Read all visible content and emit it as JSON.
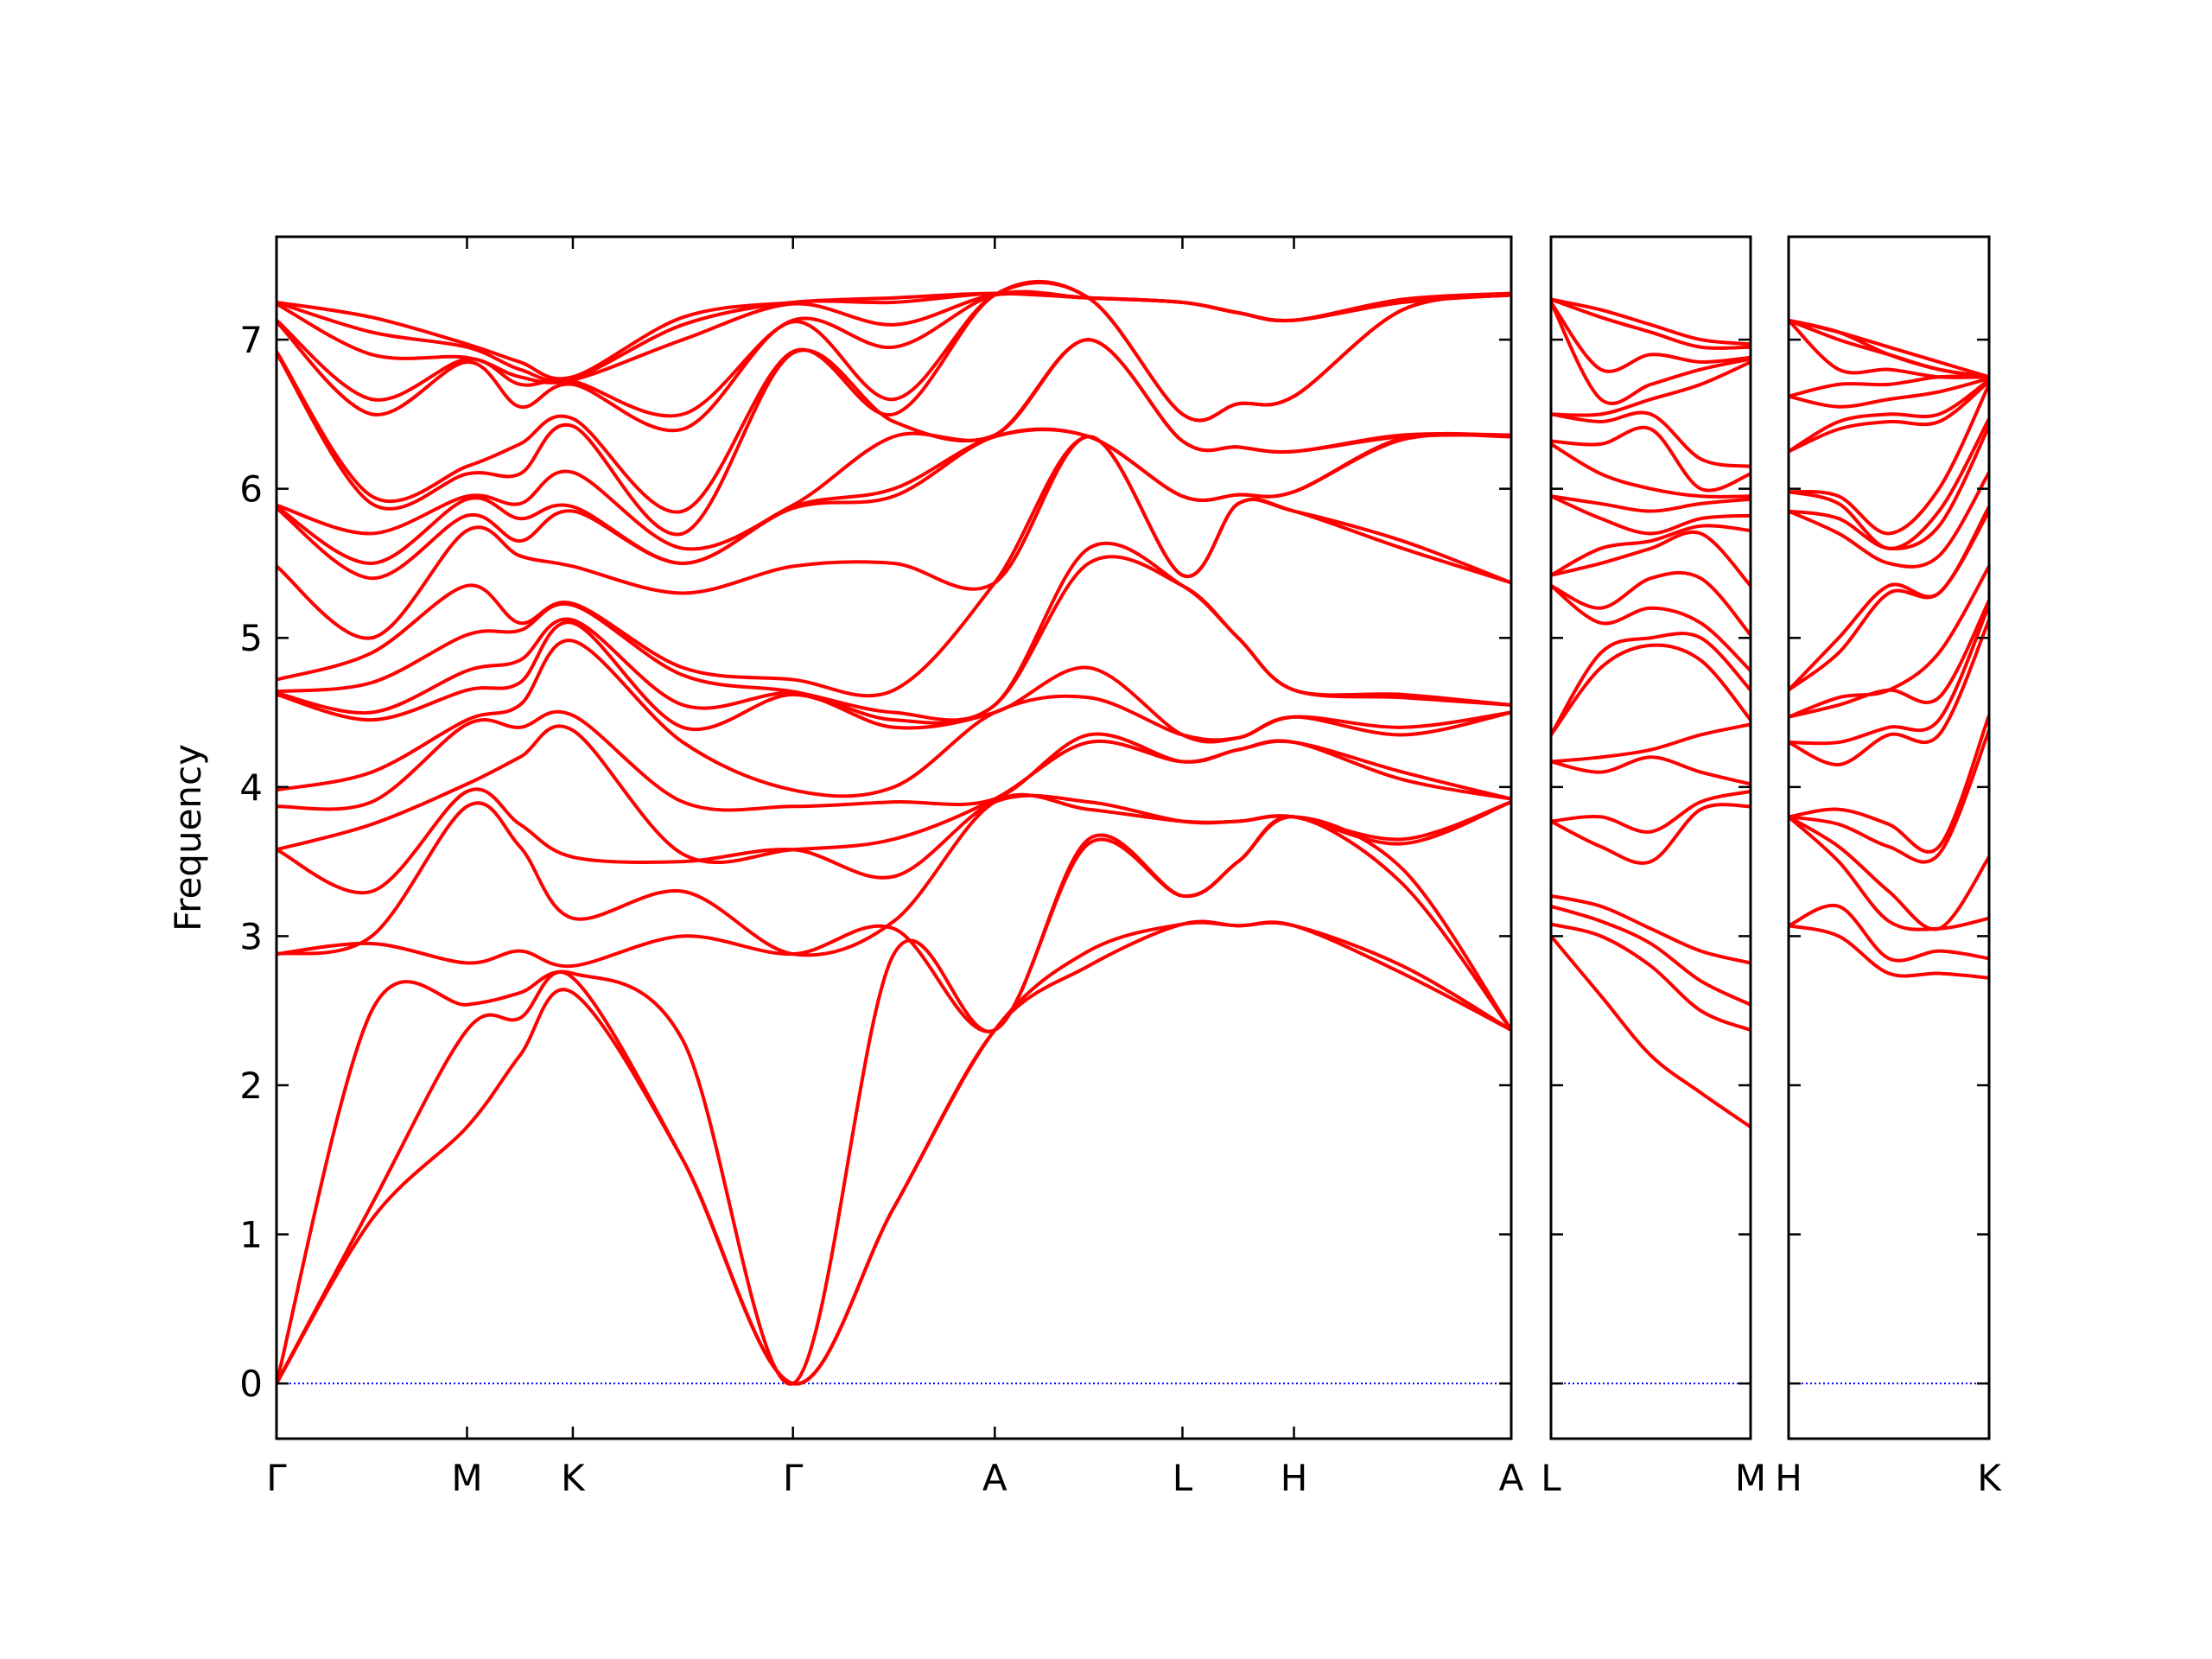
{
  "chart_data": [
    {
      "type": "line",
      "ylabel": "Frequency",
      "color": "#ff0000",
      "reference_line": {
        "y": 0,
        "color": "#0000ff"
      },
      "xlim": [
        0,
        8.75
      ],
      "ylim": [
        -0.37,
        7.69
      ],
      "yticks": [
        0,
        1,
        2,
        3,
        4,
        5,
        6,
        7
      ],
      "xticks": [
        {
          "value": 0,
          "label": "Γ"
        },
        {
          "value": 1.35,
          "label": "M"
        },
        {
          "value": 2.1,
          "label": "K"
        },
        {
          "value": 3.66,
          "label": "Γ"
        },
        {
          "value": 5.09,
          "label": "A"
        },
        {
          "value": 6.42,
          "label": "L"
        },
        {
          "value": 7.21,
          "label": "H"
        },
        {
          "value": 8.75,
          "label": "A"
        }
      ],
      "x": [
        0,
        0.675,
        1.35,
        1.725,
        2.1,
        2.88,
        3.66,
        4.375,
        5.09,
        5.755,
        6.42,
        6.815,
        7.21,
        7.98,
        8.75
      ],
      "series": [
        {
          "values": [
            0,
            1.1,
            1.72,
            2.2,
            2.62,
            1.5,
            0,
            1.18,
            2.37,
            2.8,
            3.08,
            3.07,
            3.07,
            2.75,
            2.37
          ]
        },
        {
          "values": [
            0,
            1.2,
            2.37,
            2.45,
            2.72,
            1.5,
            0,
            1.18,
            2.37,
            2.9,
            3.08,
            3.07,
            3.07,
            2.8,
            2.37
          ]
        },
        {
          "values": [
            0,
            2.5,
            2.54,
            2.62,
            2.75,
            2.3,
            0,
            2.88,
            2.37,
            3.62,
            3.27,
            3.5,
            3.8,
            3.35,
            2.37
          ]
        },
        {
          "values": [
            2.88,
            2.95,
            2.82,
            2.9,
            2.8,
            3.0,
            2.88,
            3.05,
            2.37,
            3.65,
            3.27,
            3.5,
            3.8,
            3.45,
            2.37
          ]
        },
        {
          "values": [
            2.88,
            3.0,
            3.87,
            3.6,
            3.12,
            3.3,
            2.88,
            3.1,
            3.9,
            3.85,
            3.77,
            3.77,
            3.8,
            3.62,
            3.9
          ]
        },
        {
          "values": [
            3.58,
            3.3,
            3.97,
            3.75,
            3.53,
            3.5,
            3.58,
            3.4,
            3.9,
            3.9,
            3.77,
            3.77,
            3.8,
            3.65,
            3.9
          ]
        },
        {
          "values": [
            3.58,
            3.75,
            4.02,
            4.2,
            4.38,
            3.55,
            3.58,
            3.65,
            3.92,
            4.3,
            4.17,
            4.25,
            4.3,
            4.05,
            3.92
          ]
        },
        {
          "values": [
            3.87,
            3.9,
            4.42,
            4.4,
            4.48,
            3.9,
            3.87,
            3.9,
            3.92,
            4.35,
            4.17,
            4.25,
            4.3,
            4.1,
            3.92
          ]
        },
        {
          "values": [
            3.98,
            4.1,
            4.45,
            4.55,
            4.98,
            4.3,
            3.98,
            4.0,
            4.5,
            4.6,
            4.35,
            4.33,
            4.47,
            4.35,
            4.5
          ]
        },
        {
          "values": [
            4.62,
            4.45,
            4.65,
            4.7,
            5.1,
            4.4,
            4.62,
            4.4,
            4.5,
            4.8,
            4.35,
            4.33,
            4.47,
            4.4,
            4.5
          ]
        },
        {
          "values": [
            4.63,
            4.5,
            4.78,
            4.85,
            5.12,
            4.55,
            4.63,
            4.45,
            4.55,
            5.5,
            5.35,
            5.0,
            4.65,
            4.6,
            4.55
          ]
        },
        {
          "values": [
            4.64,
            4.7,
            5.02,
            5.05,
            5.22,
            4.75,
            4.64,
            4.5,
            4.55,
            5.6,
            5.35,
            5.0,
            4.65,
            4.62,
            4.55
          ]
        },
        {
          "values": [
            4.72,
            4.9,
            5.35,
            5.1,
            5.23,
            4.8,
            4.72,
            4.65,
            5.37,
            6.35,
            5.42,
            5.9,
            5.85,
            5.6,
            5.37
          ]
        },
        {
          "values": [
            5.48,
            5.0,
            5.72,
            5.55,
            5.48,
            5.3,
            5.48,
            5.5,
            5.37,
            6.35,
            5.42,
            5.9,
            5.85,
            5.65,
            5.37
          ]
        },
        {
          "values": [
            5.87,
            5.4,
            5.82,
            5.65,
            5.85,
            5.5,
            5.87,
            5.95,
            6.35,
            6.35,
            5.95,
            5.96,
            5.98,
            6.33,
            6.35
          ]
        },
        {
          "values": [
            5.88,
            5.5,
            5.93,
            5.8,
            5.88,
            5.5,
            5.88,
            6.0,
            6.35,
            6.35,
            5.95,
            5.96,
            5.98,
            6.34,
            6.35
          ]
        },
        {
          "values": [
            5.89,
            5.7,
            5.95,
            5.9,
            6.11,
            5.6,
            5.89,
            6.35,
            6.36,
            7.0,
            6.32,
            6.28,
            6.25,
            6.35,
            6.36
          ]
        },
        {
          "values": [
            6.91,
            5.9,
            6.1,
            6.1,
            6.42,
            5.7,
            6.91,
            6.45,
            6.36,
            7.0,
            6.32,
            6.28,
            6.25,
            6.36,
            6.36
          ]
        },
        {
          "values": [
            6.92,
            5.95,
            6.15,
            6.3,
            6.47,
            5.85,
            6.92,
            6.5,
            7.3,
            7.28,
            6.5,
            6.57,
            6.62,
            7.2,
            7.3
          ]
        },
        {
          "values": [
            7.12,
            6.5,
            6.85,
            6.55,
            6.7,
            6.4,
            7.12,
            6.6,
            7.3,
            7.28,
            6.5,
            6.57,
            6.62,
            7.2,
            7.3
          ]
        },
        {
          "values": [
            7.13,
            6.6,
            6.87,
            6.7,
            6.72,
            6.5,
            7.13,
            6.95,
            7.3,
            7.28,
            7.25,
            7.18,
            7.13,
            7.25,
            7.3
          ]
        },
        {
          "values": [
            7.24,
            6.9,
            6.88,
            6.75,
            6.73,
            7.0,
            7.24,
            7.1,
            7.3,
            7.28,
            7.25,
            7.18,
            7.13,
            7.25,
            7.3
          ]
        },
        {
          "values": [
            7.25,
            7.05,
            6.95,
            6.8,
            6.74,
            7.1,
            7.25,
            7.25,
            7.31,
            7.28,
            7.25,
            7.18,
            7.13,
            7.27,
            7.31
          ]
        },
        {
          "values": [
            7.25,
            7.15,
            6.97,
            6.85,
            6.75,
            7.15,
            7.25,
            7.28,
            7.31,
            7.28,
            7.25,
            7.18,
            7.13,
            7.27,
            7.31
          ]
        }
      ]
    },
    {
      "type": "line",
      "color": "#ff0000",
      "ytick_labels": false,
      "reference_line": {
        "y": 0,
        "color": "#0000ff"
      },
      "xlim": [
        0,
        1.42
      ],
      "ylim": [
        -0.37,
        7.69
      ],
      "yticks": [
        0,
        1,
        2,
        3,
        4,
        5,
        6,
        7
      ],
      "xticks": [
        {
          "value": 0,
          "label": "L"
        },
        {
          "value": 1.42,
          "label": "M"
        }
      ],
      "x": [
        0,
        0.355,
        0.71,
        1.065,
        1.42
      ],
      "series": [
        {
          "values": [
            3.0,
            2.6,
            2.2,
            1.95,
            1.72
          ]
        },
        {
          "values": [
            3.08,
            3.0,
            2.8,
            2.5,
            2.37
          ]
        },
        {
          "values": [
            3.2,
            3.1,
            2.95,
            2.7,
            2.54
          ]
        },
        {
          "values": [
            3.27,
            3.2,
            3.05,
            2.9,
            2.82
          ]
        },
        {
          "values": [
            3.77,
            3.6,
            3.5,
            3.85,
            3.87
          ]
        },
        {
          "values": [
            3.77,
            3.8,
            3.7,
            3.9,
            3.97
          ]
        },
        {
          "values": [
            4.17,
            4.1,
            4.2,
            4.1,
            4.02
          ]
        },
        {
          "values": [
            4.17,
            4.2,
            4.25,
            4.35,
            4.42
          ]
        },
        {
          "values": [
            4.35,
            4.8,
            4.95,
            4.85,
            4.45
          ]
        },
        {
          "values": [
            4.35,
            4.9,
            5.0,
            5.0,
            4.65
          ]
        },
        {
          "values": [
            5.35,
            5.1,
            5.2,
            5.1,
            4.78
          ]
        },
        {
          "values": [
            5.35,
            5.2,
            5.4,
            5.4,
            5.02
          ]
        },
        {
          "values": [
            5.42,
            5.5,
            5.6,
            5.7,
            5.35
          ]
        },
        {
          "values": [
            5.42,
            5.6,
            5.65,
            5.75,
            5.72
          ]
        },
        {
          "values": [
            5.95,
            5.8,
            5.7,
            5.8,
            5.82
          ]
        },
        {
          "values": [
            5.95,
            5.9,
            5.85,
            5.9,
            5.93
          ]
        },
        {
          "values": [
            6.3,
            6.1,
            6.0,
            5.95,
            5.95
          ]
        },
        {
          "values": [
            6.32,
            6.3,
            6.4,
            6.0,
            6.1
          ]
        },
        {
          "values": [
            6.5,
            6.45,
            6.5,
            6.2,
            6.15
          ]
        },
        {
          "values": [
            6.5,
            6.5,
            6.6,
            6.7,
            6.85
          ]
        },
        {
          "values": [
            7.25,
            6.6,
            6.7,
            6.8,
            6.87
          ]
        },
        {
          "values": [
            7.25,
            6.8,
            6.9,
            6.85,
            6.88
          ]
        },
        {
          "values": [
            7.27,
            7.15,
            7.05,
            6.95,
            6.95
          ]
        },
        {
          "values": [
            7.27,
            7.2,
            7.1,
            7.0,
            6.97
          ]
        }
      ]
    },
    {
      "type": "line",
      "color": "#ff0000",
      "ytick_labels": false,
      "reference_line": {
        "y": 0,
        "color": "#0000ff"
      },
      "xlim": [
        0,
        1.42
      ],
      "ylim": [
        -0.37,
        7.69
      ],
      "yticks": [
        0,
        1,
        2,
        3,
        4,
        5,
        6,
        7
      ],
      "xticks": [
        {
          "value": 0,
          "label": "H"
        },
        {
          "value": 1.42,
          "label": "K"
        }
      ],
      "x": [
        0,
        0.355,
        0.71,
        1.065,
        1.42
      ],
      "series": [
        {
          "values": [
            3.07,
            3.0,
            2.75,
            2.75,
            2.72
          ]
        },
        {
          "values": [
            3.07,
            3.2,
            2.85,
            2.9,
            2.85
          ]
        },
        {
          "values": [
            3.8,
            3.5,
            3.1,
            3.05,
            3.12
          ]
        },
        {
          "values": [
            3.8,
            3.6,
            3.3,
            3.05,
            3.53
          ]
        },
        {
          "values": [
            3.8,
            3.75,
            3.6,
            3.55,
            4.38
          ]
        },
        {
          "values": [
            3.8,
            3.85,
            3.75,
            3.6,
            4.48
          ]
        },
        {
          "values": [
            4.3,
            4.15,
            4.35,
            4.35,
            5.12
          ]
        },
        {
          "values": [
            4.3,
            4.3,
            4.4,
            4.45,
            5.22
          ]
        },
        {
          "values": [
            4.47,
            4.55,
            4.65,
            4.6,
            5.25
          ]
        },
        {
          "values": [
            4.47,
            4.6,
            4.65,
            4.9,
            5.48
          ]
        },
        {
          "values": [
            4.65,
            4.9,
            5.3,
            5.3,
            5.85
          ]
        },
        {
          "values": [
            4.65,
            5.0,
            5.35,
            5.3,
            5.88
          ]
        },
        {
          "values": [
            5.85,
            5.7,
            5.5,
            5.55,
            6.11
          ]
        },
        {
          "values": [
            5.85,
            5.8,
            5.6,
            5.75,
            6.42
          ]
        },
        {
          "values": [
            5.98,
            5.9,
            5.6,
            5.85,
            6.47
          ]
        },
        {
          "values": [
            5.98,
            5.95,
            5.7,
            6.0,
            6.7
          ]
        },
        {
          "values": [
            6.25,
            6.4,
            6.45,
            6.45,
            6.72
          ]
        },
        {
          "values": [
            6.25,
            6.45,
            6.5,
            6.5,
            6.73
          ]
        },
        {
          "values": [
            6.62,
            6.55,
            6.6,
            6.65,
            6.74
          ]
        },
        {
          "values": [
            6.62,
            6.7,
            6.7,
            6.75,
            6.75
          ]
        },
        {
          "values": [
            7.13,
            6.8,
            6.8,
            6.75,
            6.75
          ]
        },
        {
          "values": [
            7.13,
            7.0,
            6.9,
            6.8,
            6.75
          ]
        },
        {
          "values": [
            7.13,
            7.05,
            6.9,
            6.8,
            6.75
          ]
        },
        {
          "values": [
            7.13,
            7.05,
            6.95,
            6.85,
            6.75
          ]
        }
      ]
    }
  ]
}
